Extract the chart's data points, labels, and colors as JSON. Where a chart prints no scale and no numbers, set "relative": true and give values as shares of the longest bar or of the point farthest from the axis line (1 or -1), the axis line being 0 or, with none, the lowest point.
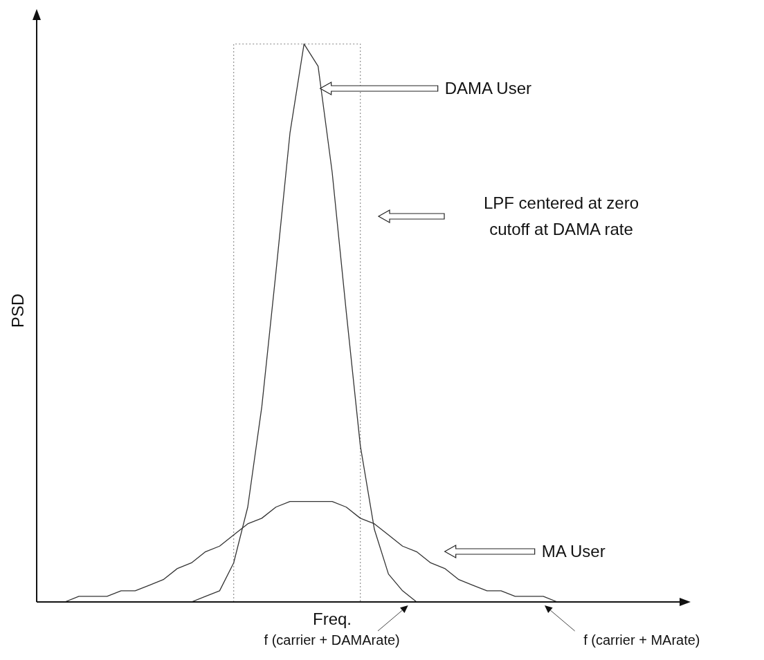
{
  "chart_data": {
    "type": "line",
    "relative": true,
    "xlabel": "Freq.",
    "ylabel": "PSD",
    "marker": "none",
    "categories": [
      null,
      null,
      null,
      null,
      null,
      null,
      null,
      null,
      null,
      null,
      null,
      null,
      null,
      null,
      null,
      null,
      null,
      null,
      null,
      null,
      null,
      null,
      null,
      null,
      null,
      null,
      null,
      null,
      null,
      null,
      null,
      null,
      null,
      null,
      null,
      null,
      null,
      null,
      null,
      null,
      null,
      null,
      null,
      null,
      null,
      null
    ],
    "series": [
      {
        "color": "#333333",
        "values": [
          null,
          null,
          null,
          null,
          null,
          null,
          null,
          null,
          null,
          null,
          null,
          0,
          0.01,
          0.02,
          0.07,
          0.17,
          0.35,
          0.59,
          0.84,
          1,
          0.96,
          0.77,
          0.52,
          0.28,
          0.13,
          0.05,
          0.02,
          0,
          0,
          null,
          null,
          null,
          null,
          null,
          null,
          null,
          null,
          null,
          null,
          null,
          null,
          null,
          null,
          null,
          null,
          null
        ]
      },
      {
        "color": "#333333",
        "values": [
          0,
          0,
          0,
          0.01,
          0.01,
          0.01,
          0.02,
          0.02,
          0.03,
          0.04,
          0.06,
          0.07,
          0.09,
          0.1,
          0.12,
          0.14,
          0.15,
          0.17,
          0.18,
          0.18,
          0.18,
          0.18,
          0.17,
          0.15,
          0.14,
          0.12,
          0.1,
          0.09,
          0.07,
          0.06,
          0.04,
          0.03,
          0.02,
          0.02,
          0.01,
          0.01,
          0.01,
          0,
          null,
          null,
          null,
          null,
          null,
          null,
          null,
          null
        ]
      },
      {
        "type": "step",
        "color": "#999999",
        "line_style": "dotted",
        "values": [
          null,
          null,
          null,
          null,
          null,
          null,
          null,
          null,
          null,
          null,
          null,
          null,
          null,
          null,
          0,
          1,
          1,
          1,
          1,
          1,
          1,
          1,
          1,
          1,
          0,
          null,
          null,
          null,
          null,
          null,
          null,
          null,
          null,
          null,
          null,
          null,
          null,
          null,
          null,
          null,
          null,
          null,
          null,
          null,
          null,
          null
        ]
      }
    ],
    "annotations": [
      "DAMA User",
      "LPF centered at zero\ncutoff at DAMA rate",
      "MA User",
      "f (carrier + DAMArate)",
      "f (carrier + MArate)"
    ]
  }
}
